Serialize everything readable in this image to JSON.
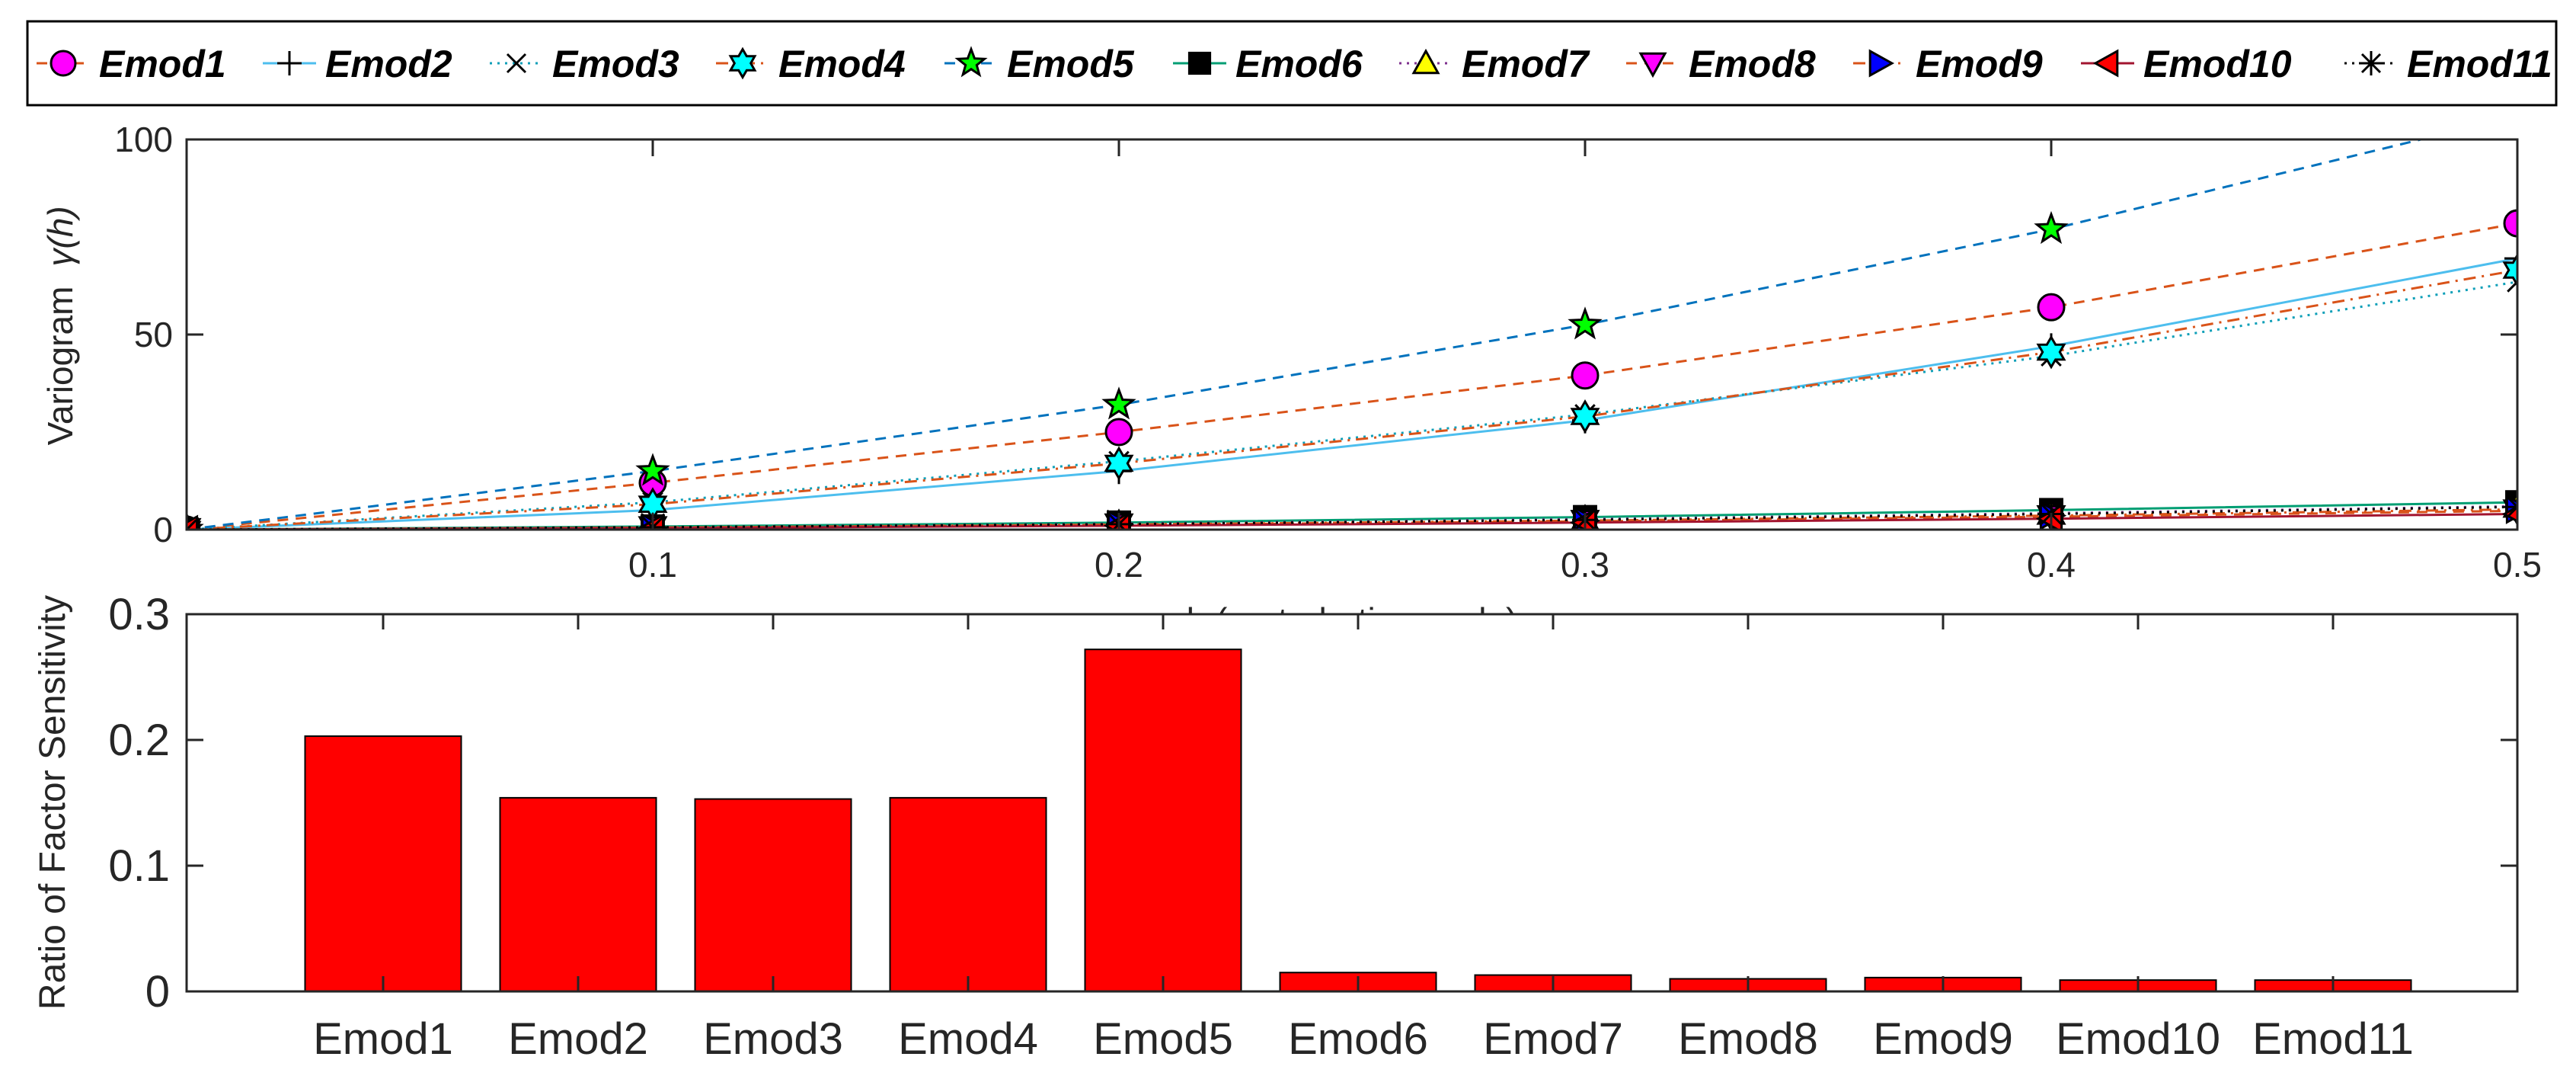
{
  "chart_data": [
    {
      "type": "line",
      "xlabel": "h (perturbation scale)",
      "ylabel": "Variogram",
      "ylabel_symbol": "γ(h)",
      "xlim": [
        0,
        0.5
      ],
      "ylim": [
        0,
        100
      ],
      "xticks": [
        "0.1",
        "0.2",
        "0.3",
        "0.4",
        "0.5"
      ],
      "yticks": [
        "0",
        "50",
        "100"
      ],
      "x": [
        0,
        0.1,
        0.2,
        0.3,
        0.4,
        0.5
      ],
      "legend_position": "top",
      "series": [
        {
          "name": "Emod1",
          "color": "#D95319",
          "dash": "dashed",
          "marker": "circle",
          "marker_fill": "#FF00FF",
          "values": [
            0,
            12,
            25,
            39.5,
            57,
            78.5
          ]
        },
        {
          "name": "Emod2",
          "color": "#4DBEEE",
          "dash": "solid",
          "marker": "plus",
          "marker_fill": "#000000",
          "values": [
            0,
            5,
            15,
            28,
            47,
            69.5
          ]
        },
        {
          "name": "Emod3",
          "color": "#0E9FB8",
          "dash": "dotted",
          "marker": "x",
          "marker_fill": "#000000",
          "values": [
            0,
            7,
            17.5,
            29.5,
            44.5,
            63.5
          ]
        },
        {
          "name": "Emod4",
          "color": "#D95319",
          "dash": "dashdot",
          "marker": "hexagram",
          "marker_fill": "#00FFFF",
          "values": [
            0,
            6.5,
            17,
            29,
            45.5,
            66.5
          ]
        },
        {
          "name": "Emod5",
          "color": "#0072BD",
          "dash": "dashed",
          "marker": "pentagram",
          "marker_fill": "#00FF00",
          "values": [
            0,
            15,
            32,
            52.5,
            77,
            106
          ]
        },
        {
          "name": "Emod6",
          "color": "#009E73",
          "dash": "solid",
          "marker": "square",
          "marker_fill": "#000000",
          "values": [
            0,
            0.8,
            1.8,
            3.2,
            5,
            7
          ]
        },
        {
          "name": "Emod7",
          "color": "#7E2F8E",
          "dash": "dotted",
          "marker": "triangle-up",
          "marker_fill": "#FFFF00",
          "values": [
            0,
            0.6,
            1.5,
            2.7,
            4.2,
            6
          ]
        },
        {
          "name": "Emod8",
          "color": "#D95319",
          "dash": "dashed",
          "marker": "triangle-down",
          "marker_fill": "#FF00FF",
          "values": [
            0,
            0.5,
            1.2,
            2.1,
            3.3,
            4.8
          ]
        },
        {
          "name": "Emod9",
          "color": "#D95319",
          "dash": "dashdot",
          "marker": "triangle-right",
          "marker_fill": "#0000FF",
          "values": [
            0,
            0.5,
            1.3,
            2.3,
            3.6,
            5.2
          ]
        },
        {
          "name": "Emod10",
          "color": "#A2142F",
          "dash": "solid",
          "marker": "triangle-left",
          "marker_fill": "#FF0000",
          "values": [
            0,
            0.4,
            1.0,
            1.8,
            2.8,
            4.0
          ]
        },
        {
          "name": "Emod11",
          "color": "#000000",
          "dash": "dotted",
          "marker": "asterisk",
          "marker_fill": "#000000",
          "values": [
            0,
            0.6,
            1.4,
            2.5,
            4.0,
            5.8
          ]
        }
      ]
    },
    {
      "type": "bar",
      "ylabel": "Ratio of Factor Sensitivity",
      "xlabel": "",
      "ylim": [
        0,
        0.3
      ],
      "yticks": [
        "0",
        "0.1",
        "0.2",
        "0.3"
      ],
      "categories": [
        "Emod1",
        "Emod2",
        "Emod3",
        "Emod4",
        "Emod5",
        "Emod6",
        "Emod7",
        "Emod8",
        "Emod9",
        "Emod10",
        "Emod11"
      ],
      "values": [
        0.203,
        0.154,
        0.153,
        0.154,
        0.272,
        0.015,
        0.013,
        0.01,
        0.011,
        0.009,
        0.009
      ],
      "bar_color": "#FF0000"
    }
  ]
}
